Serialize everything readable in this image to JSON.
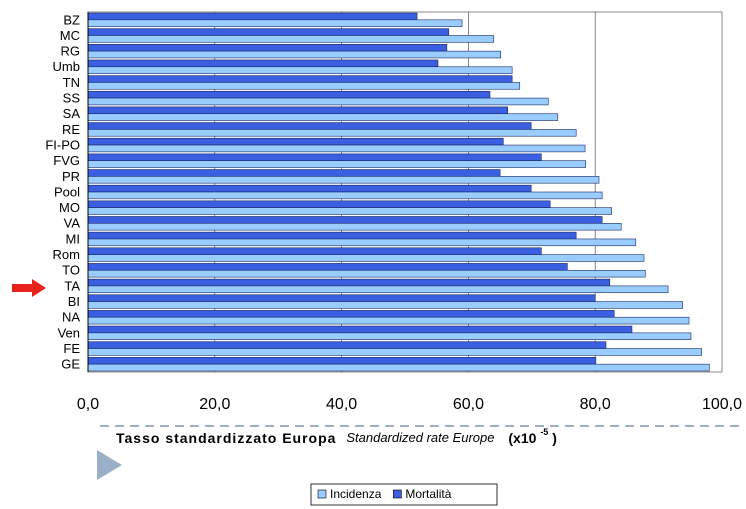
{
  "chart_data": {
    "type": "hbar",
    "categories": [
      "BZ",
      "MC",
      "RG",
      "Umb",
      "TN",
      "SS",
      "SA",
      "RE",
      "FI-PO",
      "FVG",
      "PR",
      "Pool",
      "MO",
      "VA",
      "MI",
      "Rom",
      "TO",
      "TA",
      "BI",
      "NA",
      "Ven",
      "FE",
      "GE"
    ],
    "series": [
      {
        "name": "Incidenza",
        "color": "#99ccff",
        "values": [
          59.0,
          64.0,
          65.1,
          66.9,
          68.1,
          72.6,
          74.1,
          77.0,
          78.4,
          78.5,
          80.6,
          81.1,
          82.6,
          84.1,
          86.4,
          87.7,
          87.9,
          91.5,
          93.8,
          94.8,
          95.1,
          96.8,
          98.0
        ]
      },
      {
        "name": "Mortalità",
        "color": "#3a5fe0",
        "values": [
          51.9,
          56.9,
          56.6,
          55.2,
          66.9,
          63.4,
          66.2,
          69.9,
          65.5,
          71.5,
          65.0,
          69.9,
          72.9,
          81.1,
          77.0,
          71.5,
          75.6,
          82.3,
          80.0,
          83.0,
          85.8,
          81.7,
          80.1
        ]
      }
    ],
    "xlim": [
      0,
      100
    ],
    "xticks": [
      {
        "value": 0,
        "label": "0,0"
      },
      {
        "value": 20,
        "label": "20,0"
      },
      {
        "value": 40,
        "label": "40,0"
      },
      {
        "value": 60,
        "label": "60,0"
      },
      {
        "value": 80,
        "label": "80,0"
      },
      {
        "value": 100,
        "label": "100,0"
      }
    ],
    "grid": true,
    "xlabel": "Tasso standardizzato Europa",
    "xlabel_en": "Standardized rate Europe",
    "unit": "(x10",
    "unit_exp": "-5",
    "unit_close": ")",
    "legend": "bottom"
  }
}
